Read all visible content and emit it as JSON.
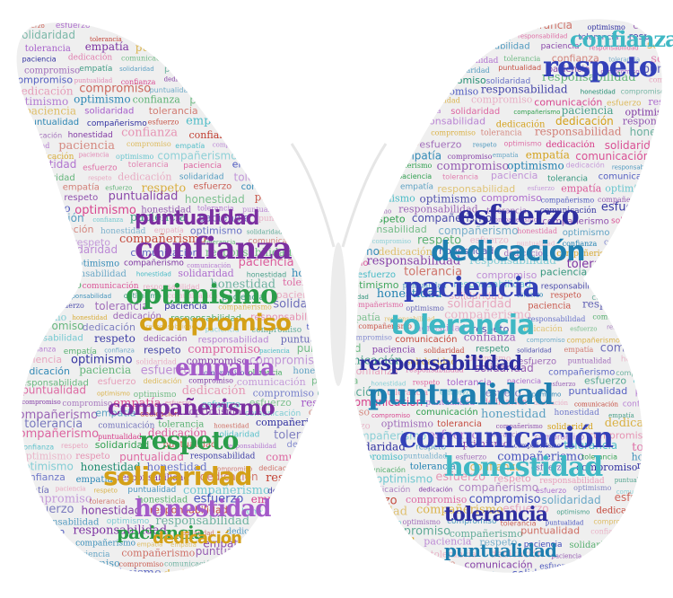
{
  "image": {
    "kind": "word cloud shaped as a butterfly",
    "background_color": "#ffffff",
    "silhouette_color": "#efefef",
    "palette": [
      "#7b2fa0",
      "#1e7fb0",
      "#d63384",
      "#2a9d4a",
      "#3340b8",
      "#c0392b",
      "#d4a017",
      "#3fb8c4",
      "#e58fb0",
      "#a45ac9",
      "#2d2d9f",
      "#1c8a6e"
    ]
  },
  "vocabulary": [
    "honestidad",
    "optimismo",
    "compañerismo",
    "confianza",
    "respeto",
    "puntualidad",
    "tolerancia",
    "paciencia",
    "esfuerzo",
    "empatía",
    "solidaridad",
    "compromiso",
    "dedicación",
    "responsabilidad",
    "comunicación"
  ],
  "prominent_words": {
    "left_wing": [
      "confianza",
      "optimismo",
      "compromiso",
      "empatía",
      "compañerismo",
      "respeto",
      "solidaridad",
      "honestidad",
      "puntualidad",
      "paciencia",
      "dedicación"
    ],
    "right_wing": [
      "respeto",
      "confianza",
      "esfuerzo",
      "dedicación",
      "paciencia",
      "tolerancia",
      "responsabilidad",
      "puntualidad",
      "comunicación",
      "honestidad",
      "tolerancia",
      "puntualidad"
    ]
  }
}
